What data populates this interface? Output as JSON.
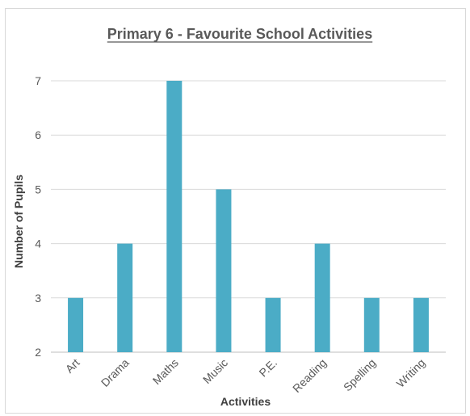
{
  "chart_data": {
    "type": "bar",
    "title": "Primary 6 - Favourite School Activities",
    "xlabel": "Activities",
    "ylabel": "Number of Pupils",
    "categories": [
      "Art",
      "Drama",
      "Maths",
      "Music",
      "P.E.",
      "Reading",
      "Spelling",
      "Writing"
    ],
    "values": [
      3,
      4,
      7,
      5,
      3,
      4,
      3,
      3
    ],
    "ylim": [
      2,
      7
    ],
    "yticks": [
      2,
      3,
      4,
      5,
      6,
      7
    ],
    "grid": true,
    "legend": "none",
    "colors": {
      "bar": "#4bacc6"
    }
  }
}
